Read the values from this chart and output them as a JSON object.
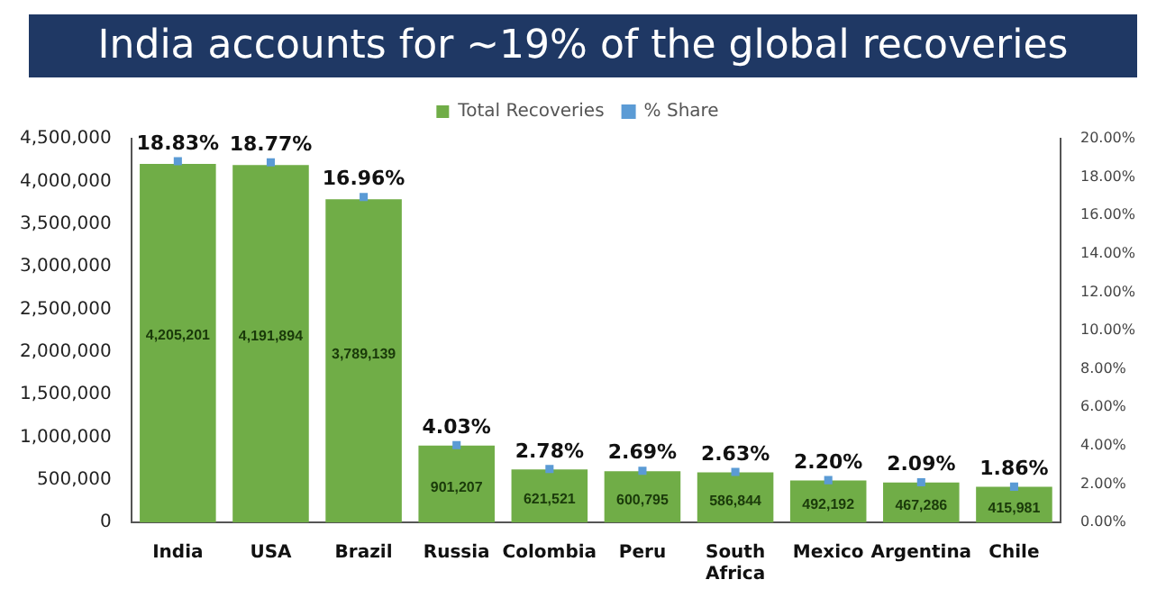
{
  "chart_data": {
    "type": "bar",
    "title": "India accounts for ~19% of the global recoveries",
    "categories": [
      "India",
      "USA",
      "Brazil",
      "Russia",
      "Colombia",
      "Peru",
      "South Africa",
      "Mexico",
      "Argentina",
      "Chile"
    ],
    "series": [
      {
        "name": "Total Recoveries",
        "color": "#70ad47",
        "values": [
          4205201,
          4191894,
          3789139,
          901207,
          621521,
          600795,
          586844,
          492192,
          467286,
          415981
        ],
        "value_labels": [
          "4,205,201",
          "4,191,894",
          "3,789,139",
          "901,207",
          "621,521",
          "600,795",
          "586,844",
          "492,192",
          "467,286",
          "415,981"
        ]
      },
      {
        "name": "% Share",
        "type": "scatter",
        "axis": "y2",
        "color": "#5b9bd5",
        "values": [
          18.83,
          18.77,
          16.96,
          4.03,
          2.78,
          2.69,
          2.63,
          2.2,
          2.09,
          1.86
        ],
        "value_labels": [
          "18.83%",
          "18.77%",
          "16.96%",
          "4.03%",
          "2.78%",
          "2.69%",
          "2.63%",
          "2.20%",
          "2.09%",
          "1.86%"
        ]
      }
    ],
    "ylim": [
      0,
      4500000
    ],
    "yticks": [
      0,
      {
        "value": 500000,
        "label": "500,000"
      },
      {
        "value": 1000000,
        "label": "1,000,000"
      },
      {
        "value": 1500000,
        "label": "1,500,000"
      },
      {
        "value": 2000000,
        "label": "2,000,000"
      },
      {
        "value": 2500000,
        "label": "2,500,000"
      },
      {
        "value": 3000000,
        "label": "3,000,000"
      },
      {
        "value": 3500000,
        "label": "3,500,000"
      },
      {
        "value": 4000000,
        "label": "4,000,000"
      },
      {
        "value": 4500000,
        "label": "4,500,000"
      }
    ],
    "y2lim": [
      0,
      20
    ],
    "y2ticks": [
      {
        "value": 0,
        "label": "0.00%"
      },
      {
        "value": 2,
        "label": "2.00%"
      },
      {
        "value": 4,
        "label": "4.00%"
      },
      {
        "value": 6,
        "label": "6.00%"
      },
      {
        "value": 8,
        "label": "8.00%"
      },
      {
        "value": 10,
        "label": "10.00%"
      },
      {
        "value": 12,
        "label": "12.00%"
      },
      {
        "value": 14,
        "label": "14.00%"
      },
      {
        "value": 16,
        "label": "16.00%"
      },
      {
        "value": 18,
        "label": "18.00%"
      },
      {
        "value": 20,
        "label": "20.00%"
      }
    ],
    "grid": false,
    "legend": "top",
    "marker": "square"
  }
}
